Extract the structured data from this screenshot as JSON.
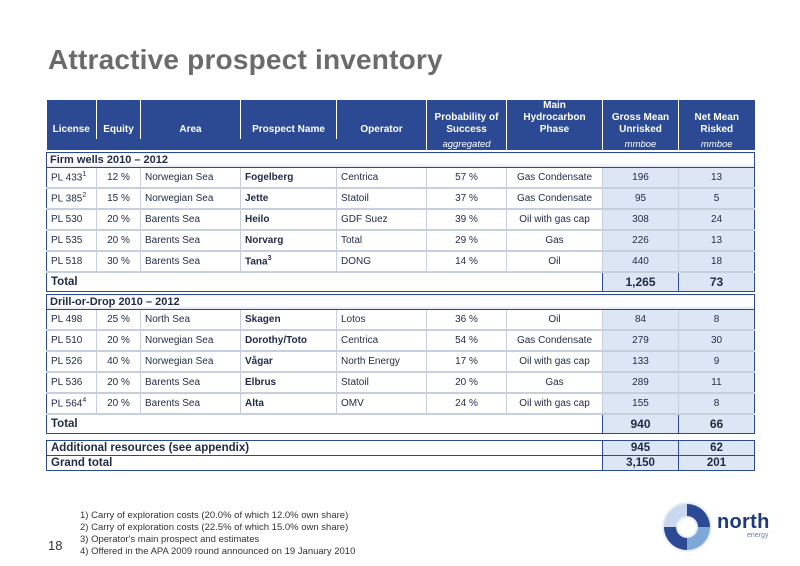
{
  "title": "Attractive prospect inventory",
  "table": {
    "headers": [
      "License",
      "Equity",
      "Area",
      "Prospect Name",
      "Operator",
      "Probability of Success",
      "Main Hydrocarbon Phase",
      "Gross  Mean Unrisked",
      "Net Mean Risked"
    ],
    "subheaders": [
      "aggregated",
      "",
      "mmboe",
      "mmboe"
    ],
    "section1": {
      "label": "Firm wells 2010 – 2012",
      "rows": [
        {
          "license": "PL 433",
          "sup": "1",
          "equity": "12 %",
          "area": "Norwegian Sea",
          "prospect": "Fogelberg",
          "psup": "",
          "operator": "Centrica",
          "pos": "57 %",
          "phase": "Gas Condensate",
          "gross": "196",
          "net": "13"
        },
        {
          "license": "PL 385",
          "sup": "2",
          "equity": "15 %",
          "area": "Norwegian Sea",
          "prospect": "Jette",
          "psup": "",
          "operator": "Statoil",
          "pos": "37 %",
          "phase": "Gas Condensate",
          "gross": "95",
          "net": "5"
        },
        {
          "license": "PL 530",
          "sup": "",
          "equity": "20 %",
          "area": "Barents  Sea",
          "prospect": "Heilo",
          "psup": "",
          "operator": "GDF Suez",
          "pos": "39 %",
          "phase": "Oil with gas cap",
          "gross": "308",
          "net": "24"
        },
        {
          "license": "PL 535",
          "sup": "",
          "equity": "20 %",
          "area": "Barents  Sea",
          "prospect": "Norvarg",
          "psup": "",
          "operator": "Total",
          "pos": "29 %",
          "phase": "Gas",
          "gross": "226",
          "net": "13"
        },
        {
          "license": "PL 518",
          "sup": "",
          "equity": "30 %",
          "area": "Barents  Sea",
          "prospect": "Tana",
          "psup": "3",
          "operator": "DONG",
          "pos": "14 %",
          "phase": "Oil",
          "gross": "440",
          "net": "18"
        }
      ],
      "total_label": "Total",
      "total_gross": "1,265",
      "total_net": "73"
    },
    "section2": {
      "label": "Drill-or-Drop 2010 – 2012",
      "rows": [
        {
          "license": "PL 498",
          "sup": "",
          "equity": "25 %",
          "area": "North Sea",
          "prospect": "Skagen",
          "psup": "",
          "operator": "Lotos",
          "pos": "36 %",
          "phase": "Oil",
          "gross": "84",
          "net": "8"
        },
        {
          "license": "PL 510",
          "sup": "",
          "equity": "20 %",
          "area": "Norwegian Sea",
          "prospect": "Dorothy/Toto",
          "psup": "",
          "operator": "Centrica",
          "pos": "54 %",
          "phase": "Gas Condensate",
          "gross": "279",
          "net": "30"
        },
        {
          "license": "PL 526",
          "sup": "",
          "equity": "40 %",
          "area": "Norwegian Sea",
          "prospect": "Vågar",
          "psup": "",
          "operator": "North Energy",
          "pos": "17 %",
          "phase": "Oil with gas cap",
          "gross": "133",
          "net": "9"
        },
        {
          "license": "PL 536",
          "sup": "",
          "equity": "20 %",
          "area": "Barents  Sea",
          "prospect": "Elbrus",
          "psup": "",
          "operator": "Statoil",
          "pos": "20 %",
          "phase": "Gas",
          "gross": "289",
          "net": "11"
        },
        {
          "license": "PL 564",
          "sup": "4",
          "equity": "20 %",
          "area": "Barents Sea",
          "prospect": "Alta",
          "psup": "",
          "operator": "OMV",
          "pos": "24 %",
          "phase": "Oil with gas cap",
          "gross": "155",
          "net": "8"
        }
      ],
      "total_label": "Total",
      "total_gross": "940",
      "total_net": "66"
    },
    "additional": {
      "label": "Additional resources (see appendix)",
      "gross": "945",
      "net": "62"
    },
    "grand_total": {
      "label": "Grand total",
      "gross": "3,150",
      "net": "201"
    }
  },
  "footnotes": [
    "1) Carry of exploration costs (20.0% of which 12.0% own share)",
    "2) Carry of exploration costs (22.5% of which 15.0% own share)",
    "3) Operator's main prospect and estimates",
    "4) Offered in the APA 2009 round announced on 19 January 2010"
  ],
  "page_number": "18",
  "logo": {
    "name": "north",
    "sub": "energy",
    "icon": "north-energy-swirl-logo",
    "colors": [
      "#2b4a93",
      "#7fa8d8",
      "#c9d8ee"
    ]
  }
}
